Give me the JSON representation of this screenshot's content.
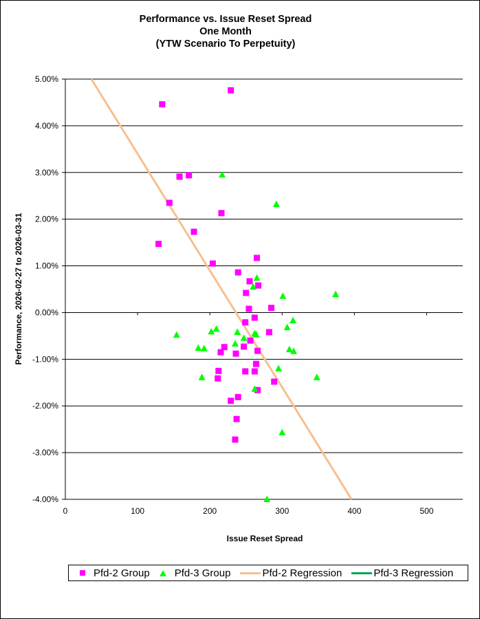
{
  "chart_data": {
    "type": "scatter",
    "title": [
      "Performance vs. Issue Reset Spread",
      "One Month",
      "(YTW Scenario To Perpetuity)"
    ],
    "xlabel": "Issue  Reset  Spread",
    "ylabel": "Performance, 2026-02-27  to 2026-03-31",
    "xlim": [
      0,
      550
    ],
    "ylim": [
      -4,
      5
    ],
    "x_ticks": [
      0,
      100,
      200,
      300,
      400,
      500
    ],
    "y_ticks": [
      5,
      4,
      3,
      2,
      1,
      0,
      -1,
      -2,
      -3,
      -4
    ],
    "x_tick_labels": [
      "0",
      "100",
      "200",
      "300",
      "400",
      "500"
    ],
    "y_tick_labels": [
      "5.00%",
      "4.00%",
      "3.00%",
      "2.00%",
      "1.00%",
      "0.00%",
      "-1.00%",
      "-2.00%",
      "-3.00%",
      "-4.00%"
    ],
    "grid": "horizontal major gridlines",
    "legend_position": "bottom",
    "series": [
      {
        "name": "Pfd-2 Group",
        "marker": "square",
        "color": "#FF00FF",
        "points": [
          [
            134,
            4.46
          ],
          [
            229,
            4.76
          ],
          [
            158,
            2.91
          ],
          [
            171,
            2.94
          ],
          [
            144,
            2.35
          ],
          [
            216,
            2.13
          ],
          [
            178,
            1.73
          ],
          [
            129,
            1.47
          ],
          [
            265,
            1.17
          ],
          [
            204,
            1.05
          ],
          [
            239,
            0.86
          ],
          [
            255,
            0.67
          ],
          [
            267,
            0.58
          ],
          [
            250,
            0.42
          ],
          [
            285,
            0.1
          ],
          [
            254,
            0.08
          ],
          [
            262,
            -0.11
          ],
          [
            249,
            -0.21
          ],
          [
            282,
            -0.42
          ],
          [
            256,
            -0.6
          ],
          [
            220,
            -0.74
          ],
          [
            247,
            -0.73
          ],
          [
            215,
            -0.85
          ],
          [
            236,
            -0.88
          ],
          [
            266,
            -0.82
          ],
          [
            264,
            -1.1
          ],
          [
            212,
            -1.25
          ],
          [
            249,
            -1.26
          ],
          [
            262,
            -1.26
          ],
          [
            211,
            -1.41
          ],
          [
            289,
            -1.48
          ],
          [
            266,
            -1.66
          ],
          [
            239,
            -1.81
          ],
          [
            229,
            -1.89
          ],
          [
            237,
            -2.28
          ],
          [
            235,
            -2.72
          ]
        ]
      },
      {
        "name": "Pfd-3 Group",
        "marker": "triangle",
        "color": "#00FF00",
        "points": [
          [
            217,
            2.95
          ],
          [
            292,
            2.32
          ],
          [
            265,
            0.74
          ],
          [
            260,
            0.55
          ],
          [
            301,
            0.35
          ],
          [
            374,
            0.39
          ],
          [
            315,
            -0.17
          ],
          [
            307,
            -0.32
          ],
          [
            154,
            -0.48
          ],
          [
            202,
            -0.41
          ],
          [
            209,
            -0.35
          ],
          [
            238,
            -0.42
          ],
          [
            262,
            -0.45
          ],
          [
            264,
            -0.47
          ],
          [
            247,
            -0.55
          ],
          [
            235,
            -0.67
          ],
          [
            184,
            -0.76
          ],
          [
            192,
            -0.77
          ],
          [
            310,
            -0.79
          ],
          [
            316,
            -0.83
          ],
          [
            295,
            -1.2
          ],
          [
            189,
            -1.39
          ],
          [
            348,
            -1.39
          ],
          [
            262,
            -1.64
          ],
          [
            300,
            -2.57
          ],
          [
            279,
            -4.0
          ]
        ]
      },
      {
        "name": "Pfd-2 Regression",
        "type": "line",
        "color": "#F8BF8E",
        "points": [
          [
            36,
            5.0
          ],
          [
            396,
            -4.0
          ]
        ]
      },
      {
        "name": "Pfd-3 Regression",
        "type": "line",
        "color": "#00A651",
        "points": []
      }
    ]
  }
}
